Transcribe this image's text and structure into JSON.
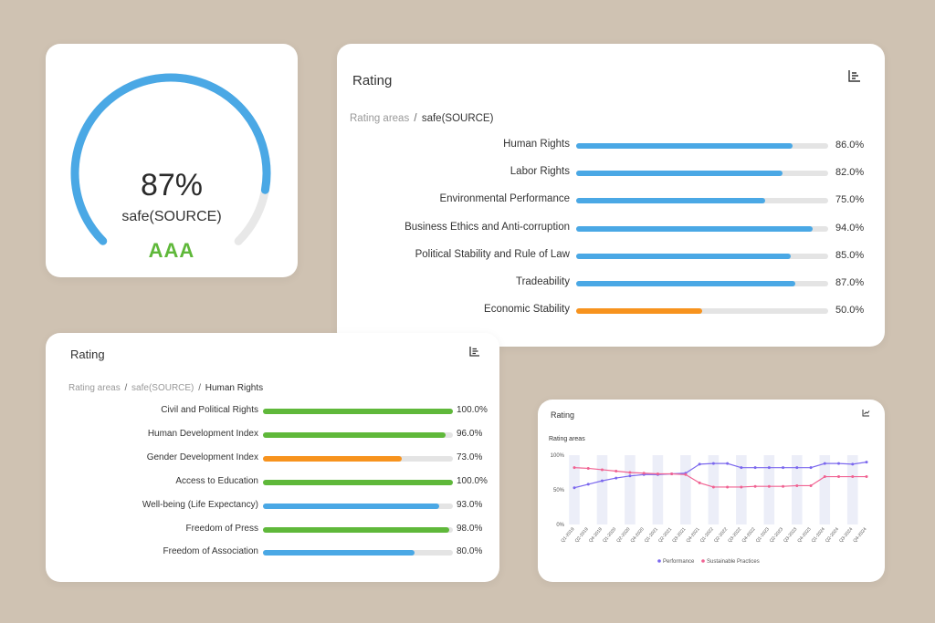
{
  "gauge": {
    "percent": 87,
    "percent_label": "87%",
    "name": "safe(SOURCE)",
    "grade": "AAA",
    "color": "#4aa8e5"
  },
  "main_rating": {
    "title": "Rating",
    "breadcrumb": {
      "root": "Rating areas",
      "separator": "/",
      "current": "safe(SOURCE)"
    },
    "items": [
      {
        "label": "Human Rights",
        "value": 86.0,
        "value_label": "86.0%",
        "color": "#4aa8e5"
      },
      {
        "label": "Labor Rights",
        "value": 82.0,
        "value_label": "82.0%",
        "color": "#4aa8e5"
      },
      {
        "label": "Environmental Performance",
        "value": 75.0,
        "value_label": "75.0%",
        "color": "#4aa8e5"
      },
      {
        "label": "Business Ethics and Anti-corruption",
        "value": 94.0,
        "value_label": "94.0%",
        "color": "#4aa8e5"
      },
      {
        "label": "Political Stability and Rule of Law",
        "value": 85.0,
        "value_label": "85.0%",
        "color": "#4aa8e5"
      },
      {
        "label": "Tradeability",
        "value": 87.0,
        "value_label": "87.0%",
        "color": "#4aa8e5"
      },
      {
        "label": "Economic Stability",
        "value": 50.0,
        "value_label": "50.0%",
        "color": "#f7931e"
      }
    ]
  },
  "sub_rating": {
    "title": "Rating",
    "breadcrumb": {
      "root": "Rating areas",
      "separator": "/",
      "middle": "safe(SOURCE)",
      "current": "Human Rights"
    },
    "items": [
      {
        "label": "Civil and Political Rights",
        "value": 100.0,
        "value_label": "100.0%",
        "color": "#5fb83a"
      },
      {
        "label": "Human Development Index",
        "value": 96.0,
        "value_label": "96.0%",
        "color": "#5fb83a"
      },
      {
        "label": "Gender Development Index",
        "value": 73.0,
        "value_label": "73.0%",
        "color": "#f7931e"
      },
      {
        "label": "Access to Education",
        "value": 100.0,
        "value_label": "100.0%",
        "color": "#5fb83a"
      },
      {
        "label": "Well-being (Life Expectancy)",
        "value": 93.0,
        "value_label": "93.0%",
        "color": "#4aa8e5"
      },
      {
        "label": "Freedom of Press",
        "value": 98.0,
        "value_label": "98.0%",
        "color": "#5fb83a"
      },
      {
        "label": "Freedom of Association",
        "value": 80.0,
        "value_label": "80.0%",
        "color": "#4aa8e5"
      }
    ]
  },
  "line_card": {
    "title": "Rating",
    "subtitle": "Rating areas"
  },
  "chart_data": {
    "type": "line",
    "title": "Rating",
    "subtitle": "Rating areas",
    "x": [
      "Q1-2019",
      "Q2-2019",
      "Q4-2019",
      "Q1-2020",
      "Q2-2020",
      "Q4-2020",
      "Q1-2021",
      "Q2-2021",
      "Q3-2021",
      "Q4-2021",
      "Q1-2022",
      "Q2-2022",
      "Q3-2022",
      "Q4-2022",
      "Q1-2023",
      "Q2-2023",
      "Q3-2023",
      "Q4-2023",
      "Q1-2024",
      "Q2-2024",
      "Q3-2024",
      "Q4-2024"
    ],
    "y_ticks": [
      "0%",
      "50%",
      "100%"
    ],
    "ylim": [
      0,
      100
    ],
    "series": [
      {
        "name": "Performance",
        "color": "#7b68ee",
        "values": [
          53,
          58,
          63,
          67,
          70,
          72,
          72,
          73,
          74,
          87,
          88,
          88,
          82,
          82,
          82,
          82,
          82,
          82,
          88,
          88,
          87,
          90
        ]
      },
      {
        "name": "Sustainable Practices",
        "color": "#f06292",
        "values": [
          82,
          81,
          79,
          77,
          75,
          74,
          73,
          73,
          72,
          60,
          54,
          54,
          54,
          55,
          55,
          55,
          56,
          56,
          69,
          69,
          69,
          69
        ]
      }
    ],
    "legend": "bottom"
  }
}
